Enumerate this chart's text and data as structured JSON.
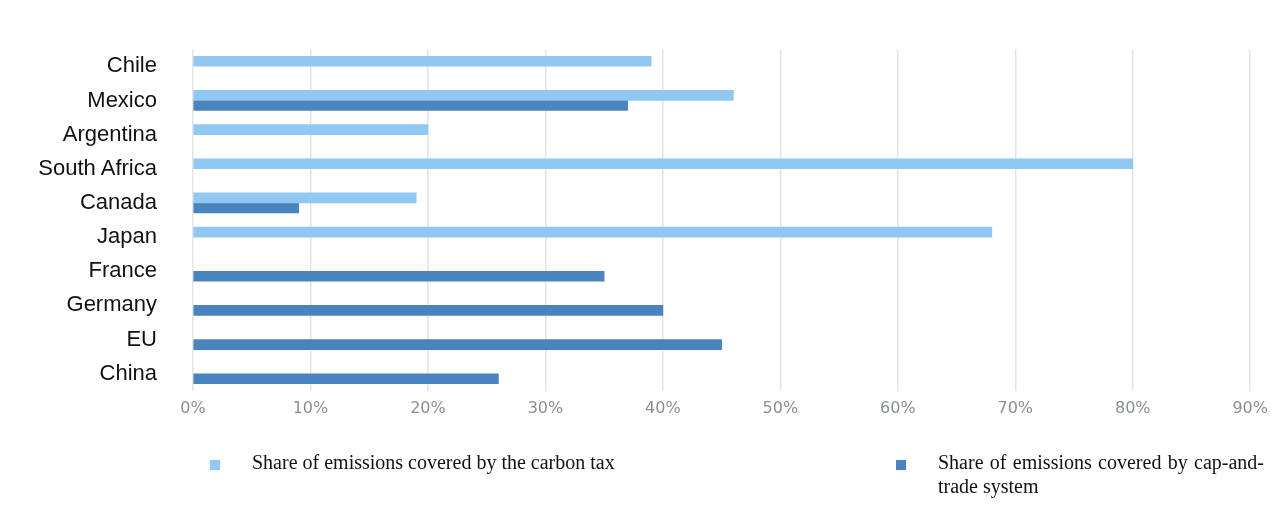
{
  "chart_data": {
    "type": "bar",
    "orientation": "horizontal",
    "categories": [
      "Chile",
      "Mexico",
      "Argentina",
      "South Africa",
      "Canada",
      "Japan",
      "France",
      "Germany",
      "EU",
      "China"
    ],
    "series": [
      {
        "name": "Share of emissions covered by the carbon tax",
        "color": "#90c8f2",
        "values": [
          39,
          46,
          20,
          80,
          19,
          68,
          null,
          null,
          null,
          null
        ]
      },
      {
        "name": "Share of emissions covered by cap-and-trade system",
        "color": "#4a84bf",
        "values": [
          null,
          37,
          null,
          null,
          9,
          null,
          35,
          40,
          45,
          26
        ]
      }
    ],
    "xlim": [
      0,
      90
    ],
    "xticks": [
      {
        "value": 0,
        "label": "0%"
      },
      {
        "value": 10,
        "label": "10%"
      },
      {
        "value": 20,
        "label": "20%"
      },
      {
        "value": 30,
        "label": "30%"
      },
      {
        "value": 40,
        "label": "40%"
      },
      {
        "value": 50,
        "label": "50%"
      },
      {
        "value": 60,
        "label": "60%"
      },
      {
        "value": 70,
        "label": "70%"
      },
      {
        "value": 80,
        "label": "80%"
      },
      {
        "value": 90,
        "label": "90%"
      }
    ],
    "grid": "x",
    "legend": "bottom"
  }
}
